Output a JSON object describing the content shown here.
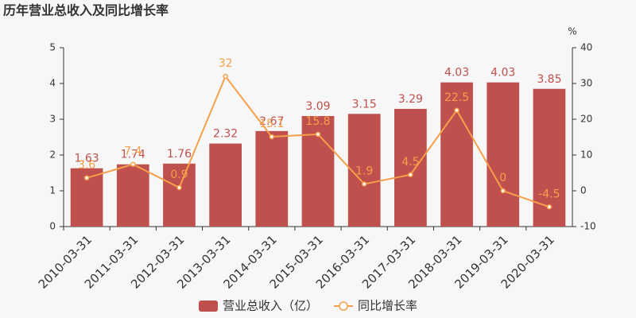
{
  "chart_data": {
    "type": "bar",
    "title": "历年营业总收入及同比增长率",
    "y2_label": "%",
    "categories": [
      "2010-03-31",
      "2011-03-31",
      "2012-03-31",
      "2013-03-31",
      "2014-03-31",
      "2015-03-31",
      "2016-03-31",
      "2017-03-31",
      "2018-03-31",
      "2019-03-31",
      "2020-03-31"
    ],
    "series": [
      {
        "name": "营业总收入（亿）",
        "type": "bar",
        "color": "#c0504d",
        "values": [
          1.63,
          1.74,
          1.76,
          2.32,
          2.67,
          3.09,
          3.15,
          3.29,
          4.03,
          4.03,
          3.85
        ]
      },
      {
        "name": "同比增长率",
        "type": "line",
        "axis": "y2",
        "color": "#f4a04a",
        "values": [
          3.6,
          7.4,
          0.9,
          32,
          15.1,
          15.8,
          1.9,
          4.5,
          22.5,
          0,
          -4.5
        ]
      }
    ],
    "ylim": [
      0,
      5
    ],
    "yticks": [
      0,
      1,
      2,
      3,
      4,
      5
    ],
    "y2lim": [
      -10,
      40
    ],
    "y2ticks": [
      -10,
      0,
      10,
      20,
      30,
      40
    ],
    "legend": "bottom"
  }
}
